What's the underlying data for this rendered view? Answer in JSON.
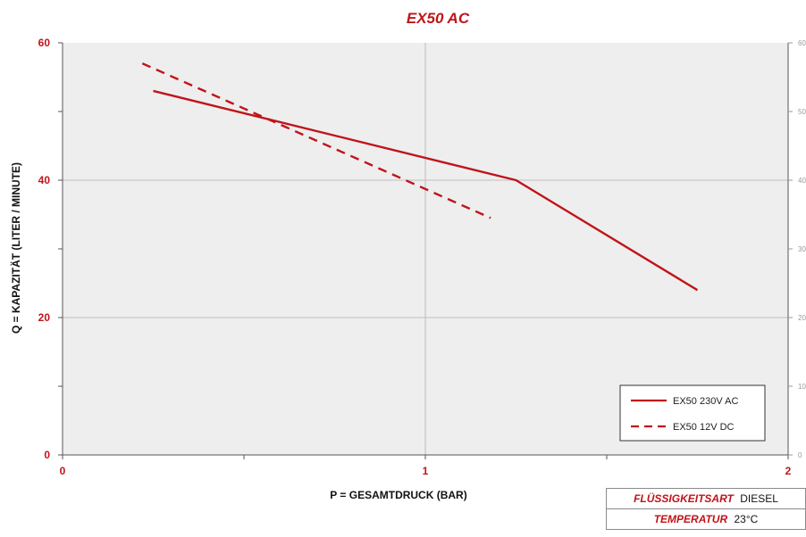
{
  "colors": {
    "accent": "#c0141a",
    "plot_background": "#eeeeee",
    "grid": "#bdbdbd",
    "axis_text": "#c0141a",
    "right_axis_text": "#999999"
  },
  "chart_data": {
    "type": "line",
    "title": "EX50 AC",
    "xlabel": "P = GESAMTDRUCK (BAR)",
    "ylabel": "Q = KAPAZITÄT (LITER / MINUTE)",
    "xlim": [
      0,
      2
    ],
    "ylim": [
      0,
      60
    ],
    "x_ticks": [
      "0",
      "1",
      "2"
    ],
    "y_ticks": [
      "0",
      "20",
      "40",
      "60"
    ],
    "right_axis_ticks": [
      "0",
      "10",
      "20",
      "30",
      "40",
      "50",
      "60"
    ],
    "grid": true,
    "legend_position": "bottom-right",
    "series": [
      {
        "name": "EX50 230V AC",
        "style": "solid",
        "x": [
          0.25,
          1.25,
          1.75
        ],
        "y": [
          53,
          40,
          24
        ]
      },
      {
        "name": "EX50 12V DC",
        "style": "dashed",
        "x": [
          0.22,
          1.18
        ],
        "y": [
          57,
          34.5
        ]
      }
    ]
  },
  "info": {
    "rows": [
      {
        "key": "FLÜSSIGKEITSART",
        "value": "DIESEL"
      },
      {
        "key": "TEMPERATUR",
        "value": "23°C"
      }
    ]
  }
}
